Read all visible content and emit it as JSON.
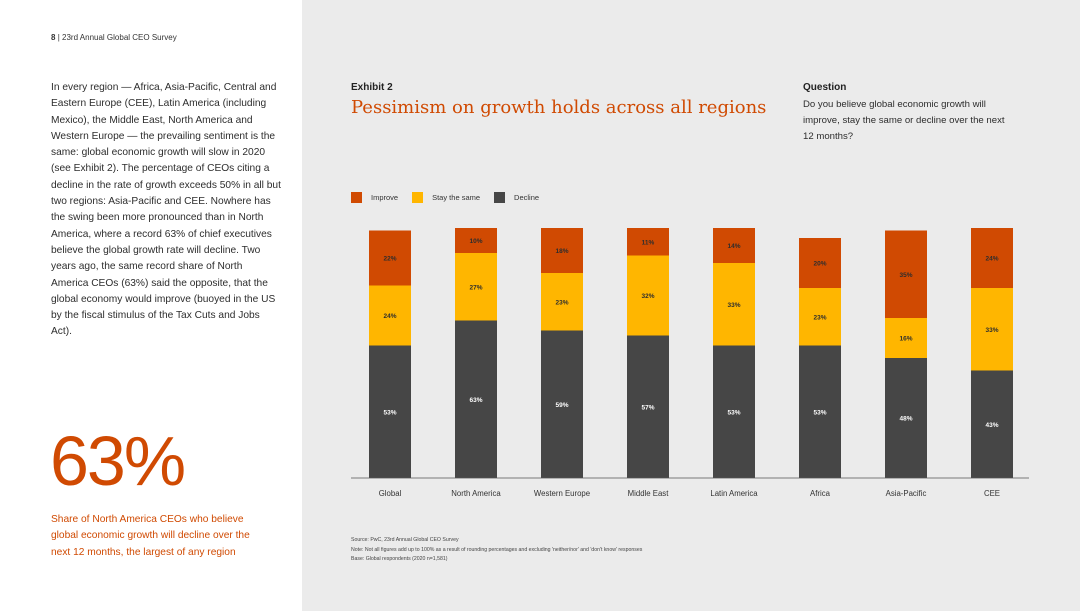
{
  "page": {
    "number": "8",
    "separator": "|",
    "report_title": "23rd Annual Global CEO Survey"
  },
  "body_text": "In every region — Africa, Asia-Pacific, Central and Eastern Europe (CEE), Latin America (including Mexico), the Middle East, North America and Western Europe — the prevailing sentiment is the same: global economic growth will slow in 2020 (see Exhibit 2). The percentage of CEOs citing a decline in the rate of growth exceeds 50% in all but two regions: Asia-Pacific and CEE. Nowhere has the swing been more pronounced than in North America, where a record 63% of chief executives believe the global growth rate will decline. Two years ago, the same record share of North America CEOs (63%) said the opposite, that the global economy would improve (buoyed in the US by the fiscal stimulus of the Tax Cuts and Jobs Act).",
  "highlight": {
    "value": "63%",
    "caption": "Share of North America CEOs who believe global economic growth will decline over the next 12 months, the largest of any region"
  },
  "exhibit": {
    "label": "Exhibit 2",
    "title": "Pessimism on growth holds across all regions"
  },
  "question": {
    "label": "Question",
    "text": "Do you believe global economic growth will improve, stay the same or decline over the next 12 months?"
  },
  "colors": {
    "improve": "#d04a02",
    "stay_same": "#ffb600",
    "decline": "#464646",
    "accent": "#d04a02"
  },
  "chart_data": {
    "type": "bar",
    "stacked": true,
    "title": "Pessimism on growth holds across all regions",
    "xlabel": "",
    "ylabel": "",
    "ylim": [
      0,
      100
    ],
    "categories": [
      "Global",
      "North America",
      "Western Europe",
      "Middle East",
      "Latin America",
      "Africa",
      "Asia-Pacific",
      "CEE"
    ],
    "series": [
      {
        "name": "Decline",
        "color_key": "decline",
        "values": [
          53,
          63,
          59,
          57,
          53,
          53,
          48,
          43
        ]
      },
      {
        "name": "Stay the same",
        "color_key": "stay_same",
        "values": [
          24,
          27,
          23,
          32,
          33,
          23,
          16,
          33
        ]
      },
      {
        "name": "Improve",
        "color_key": "improve",
        "values": [
          22,
          10,
          18,
          11,
          14,
          20,
          35,
          24
        ]
      }
    ],
    "legend_order": [
      "Improve",
      "Stay the same",
      "Decline"
    ],
    "value_suffix": "%"
  },
  "footnotes": {
    "source": "Source: PwC, 23rd Annual Global CEO Survey",
    "note": "Note: Not all figures add up to 100% as a result of rounding percentages and excluding 'neither/nor' and 'don't know' responses",
    "base": "Base: Global respondents (2020 n=1,581)"
  }
}
